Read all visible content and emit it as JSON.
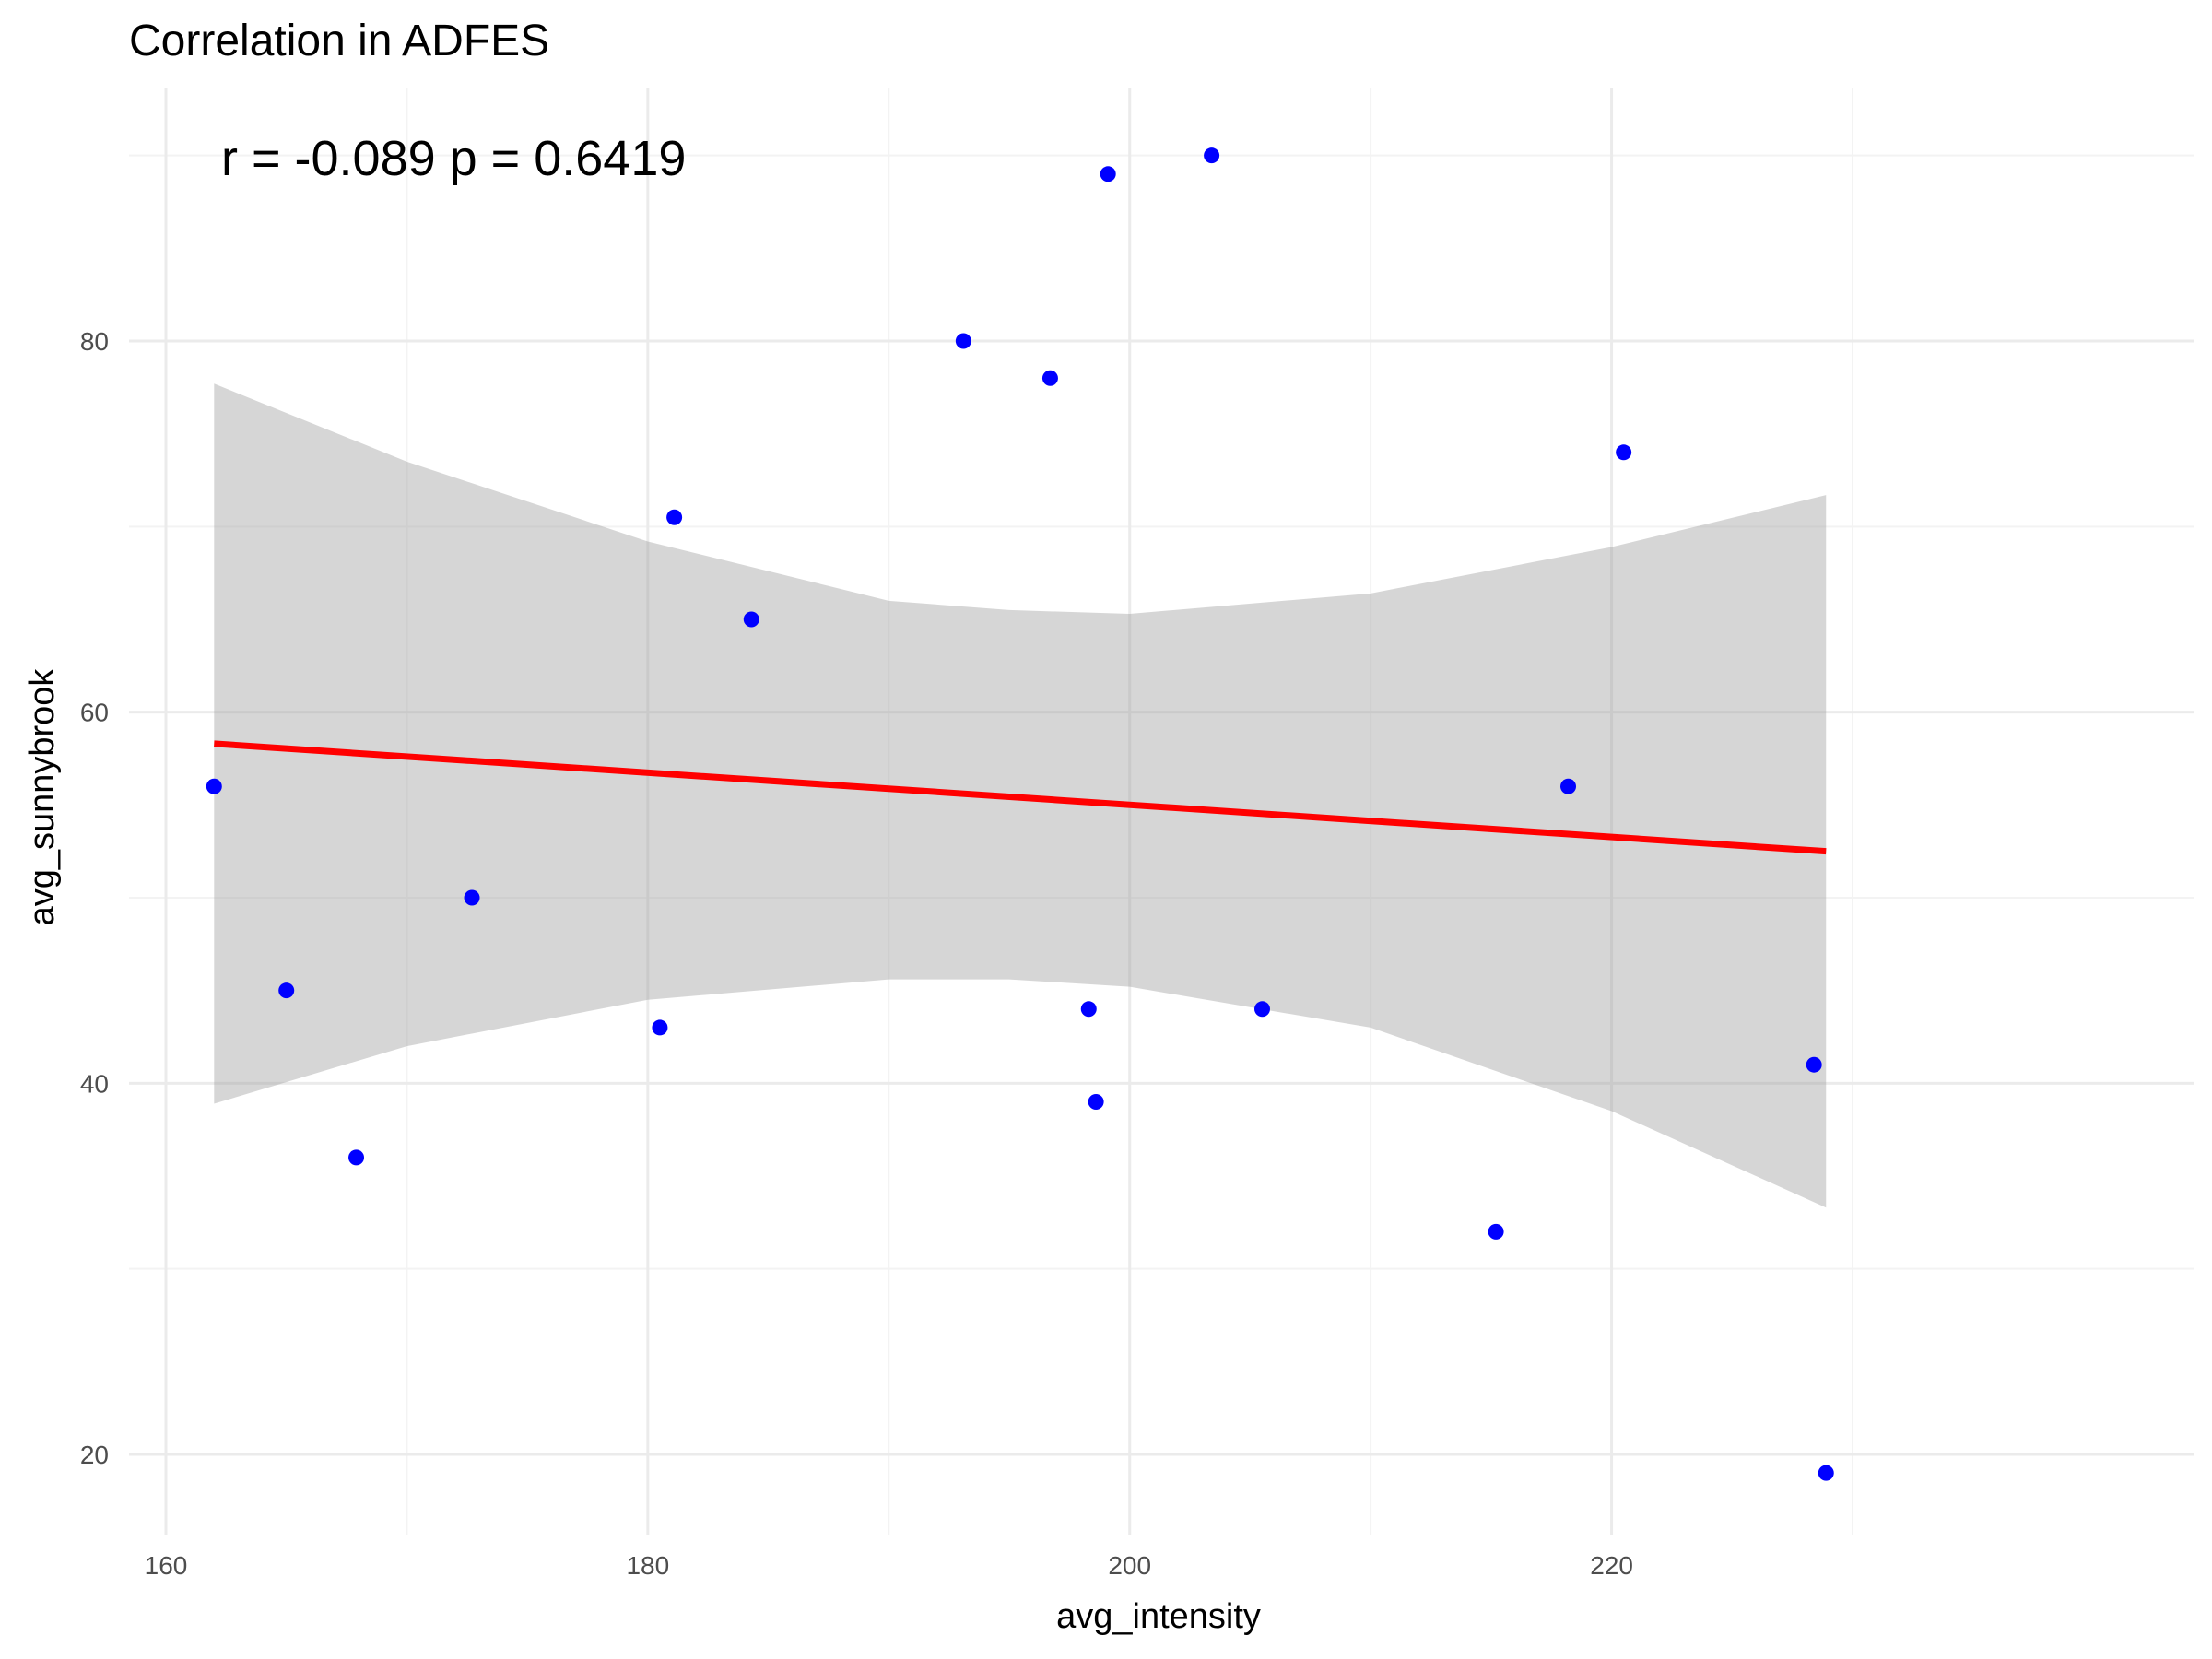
{
  "chart_data": {
    "type": "scatter",
    "title": "Correlation in ADFES",
    "xlabel": "avg_intensity",
    "ylabel": "avg_sunnybrook",
    "annotation": "r = -0.089 p = 0.6419",
    "xlim": [
      160,
      230
    ],
    "ylim": [
      18,
      91
    ],
    "x_ticks": [
      160,
      180,
      200,
      220
    ],
    "y_ticks": [
      20,
      40,
      60,
      80
    ],
    "grid": true,
    "point_color": "#0000FF",
    "line_color": "#FF0000",
    "band_color": "#999999",
    "points": [
      {
        "x": 162.0,
        "y": 56
      },
      {
        "x": 165.0,
        "y": 45
      },
      {
        "x": 167.9,
        "y": 36
      },
      {
        "x": 172.7,
        "y": 50
      },
      {
        "x": 180.5,
        "y": 43
      },
      {
        "x": 181.1,
        "y": 70.5
      },
      {
        "x": 184.3,
        "y": 65
      },
      {
        "x": 193.1,
        "y": 80
      },
      {
        "x": 196.7,
        "y": 78
      },
      {
        "x": 198.3,
        "y": 44
      },
      {
        "x": 198.6,
        "y": 39
      },
      {
        "x": 199.1,
        "y": 89
      },
      {
        "x": 203.4,
        "y": 90
      },
      {
        "x": 205.5,
        "y": 44
      },
      {
        "x": 215.2,
        "y": 32
      },
      {
        "x": 218.2,
        "y": 56
      },
      {
        "x": 220.5,
        "y": 74
      },
      {
        "x": 228.4,
        "y": 41
      },
      {
        "x": 228.9,
        "y": 19
      }
    ],
    "fit_line": {
      "x": [
        162.0,
        228.9
      ],
      "y": [
        58.3,
        52.5
      ]
    },
    "confidence_band": [
      {
        "x": 162.0,
        "lower": 38.9,
        "upper": 77.7
      },
      {
        "x": 170.0,
        "lower": 42.0,
        "upper": 73.5
      },
      {
        "x": 180.0,
        "lower": 44.5,
        "upper": 69.2
      },
      {
        "x": 190.0,
        "lower": 45.6,
        "upper": 66.0
      },
      {
        "x": 195.0,
        "lower": 45.6,
        "upper": 65.5
      },
      {
        "x": 200.0,
        "lower": 45.2,
        "upper": 65.3
      },
      {
        "x": 210.0,
        "lower": 43.0,
        "upper": 66.4
      },
      {
        "x": 220.0,
        "lower": 38.5,
        "upper": 68.9
      },
      {
        "x": 228.9,
        "lower": 33.3,
        "upper": 71.7
      }
    ]
  }
}
